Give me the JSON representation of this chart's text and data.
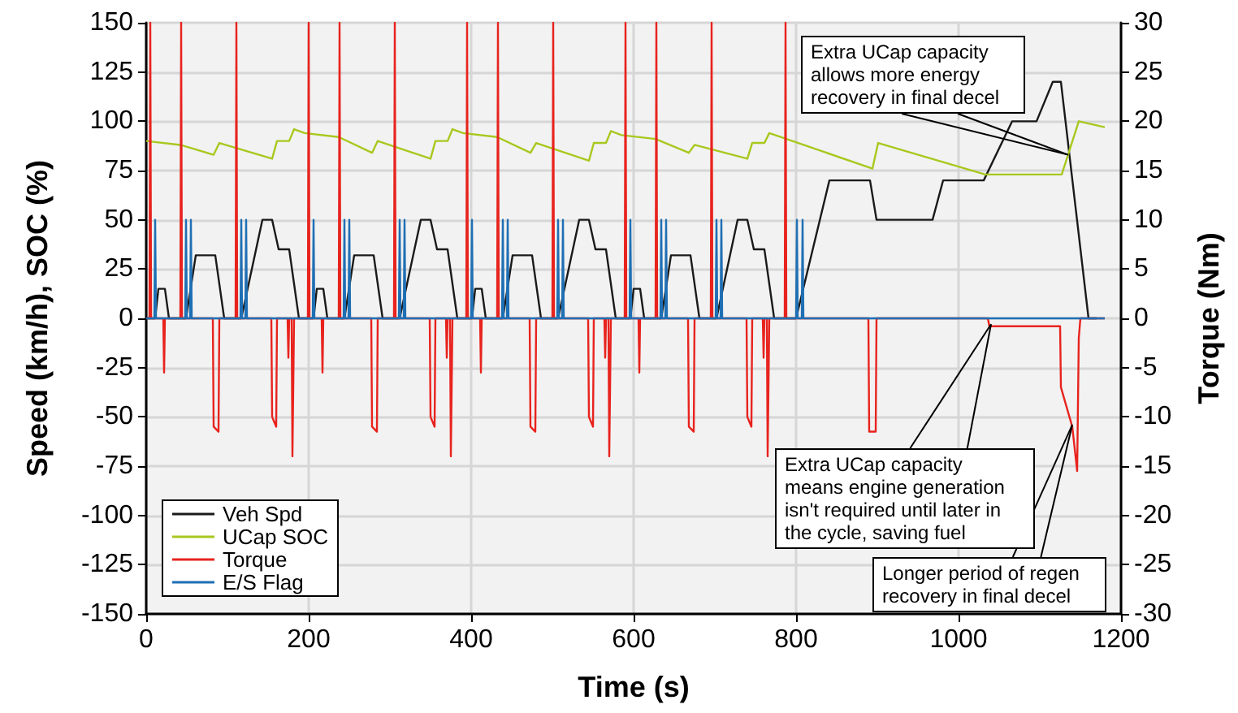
{
  "chart_data": {
    "type": "line",
    "xlabel": "Time (s)",
    "ylabel": "Speed (km/h), SOC (%)",
    "y2label": "Torque (Nm)",
    "xlim": [
      0,
      1200
    ],
    "xticks": [
      0,
      200,
      400,
      600,
      800,
      1000,
      1200
    ],
    "ylim": [
      -150,
      150
    ],
    "yticks": [
      -150,
      -125,
      -100,
      -75,
      -50,
      -25,
      0,
      25,
      50,
      75,
      100,
      125,
      150
    ],
    "y2lim": [
      -30,
      30
    ],
    "y2ticks": [
      -30,
      -25,
      -20,
      -15,
      -10,
      -5,
      0,
      5,
      10,
      15,
      20,
      25,
      30
    ],
    "grid": true,
    "legend": "bottom left",
    "annotations": [
      {
        "text": "Extra UCap capacity allows more energy recovery in final decel",
        "x": 1135,
        "y": 83
      },
      {
        "text": "Extra UCap capacity means engine generation isn't required until later in the cycle, saving fuel",
        "x": 1040,
        "y": -3
      },
      {
        "text": "Longer period of regen recovery in final decel",
        "x": 1140,
        "y": -54
      }
    ],
    "series": [
      {
        "name": "Veh Spd",
        "color": "#1a1a1a",
        "x": [
          0,
          11,
          15,
          23,
          28,
          49,
          61,
          85,
          96,
          117,
          143,
          155,
          163,
          176,
          188,
          195,
          206,
          210,
          218,
          223,
          244,
          256,
          280,
          291,
          312,
          338,
          350,
          358,
          371,
          383,
          390,
          401,
          405,
          413,
          418,
          439,
          451,
          475,
          486,
          507,
          533,
          545,
          553,
          566,
          578,
          585,
          596,
          600,
          608,
          613,
          634,
          646,
          670,
          681,
          702,
          728,
          740,
          748,
          761,
          773,
          780,
          800,
          841,
          891,
          899,
          968,
          981,
          1031,
          1066,
          1096,
          1116,
          1126,
          1160,
          1170
        ],
        "values": [
          0,
          0,
          15,
          15,
          0,
          0,
          32,
          32,
          0,
          0,
          50,
          50,
          35,
          35,
          0,
          0,
          0,
          15,
          15,
          0,
          0,
          32,
          32,
          0,
          0,
          50,
          50,
          35,
          35,
          0,
          0,
          0,
          15,
          15,
          0,
          0,
          32,
          32,
          0,
          0,
          50,
          50,
          35,
          35,
          0,
          0,
          0,
          15,
          15,
          0,
          0,
          32,
          32,
          0,
          0,
          50,
          50,
          35,
          35,
          0,
          0,
          0,
          70,
          70,
          50,
          50,
          70,
          70,
          100,
          100,
          120,
          120,
          0,
          0
        ]
      },
      {
        "name": "UCap SOC",
        "color": "#a8c81e",
        "x": [
          0,
          42,
          83,
          90,
          155,
          161,
          176,
          182,
          195,
          237,
          278,
          285,
          350,
          356,
          371,
          377,
          390,
          432,
          473,
          480,
          545,
          551,
          566,
          572,
          585,
          627,
          668,
          675,
          740,
          746,
          761,
          767,
          894,
          901,
          1033,
          1127,
          1148,
          1180
        ],
        "values": [
          90,
          88,
          83,
          89,
          81,
          90,
          90,
          96,
          94,
          92,
          84,
          90,
          81,
          90,
          90,
          96,
          94,
          92,
          84,
          89,
          80,
          89,
          89,
          95,
          93,
          91,
          84,
          88,
          81,
          89,
          89,
          94,
          76,
          89,
          73,
          73,
          100,
          97
        ]
      },
      {
        "name": "Torque",
        "color": "#e8231e",
        "axis": "y2",
        "x": [
          0,
          4,
          5,
          6,
          21,
          22,
          23,
          42,
          43,
          44,
          82,
          83,
          89,
          90,
          110,
          111,
          112,
          154,
          155,
          160,
          161,
          174,
          175,
          176,
          179,
          180,
          182,
          195,
          199,
          200,
          201,
          216,
          217,
          218,
          237,
          238,
          239,
          277,
          278,
          284,
          285,
          305,
          306,
          307,
          349,
          350,
          355,
          356,
          369,
          370,
          371,
          374,
          375,
          377,
          390,
          394,
          395,
          396,
          411,
          412,
          413,
          432,
          433,
          434,
          472,
          473,
          479,
          480,
          500,
          501,
          502,
          544,
          545,
          550,
          551,
          564,
          565,
          566,
          569,
          570,
          572,
          585,
          589,
          590,
          591,
          606,
          607,
          608,
          627,
          628,
          629,
          667,
          668,
          674,
          675,
          695,
          696,
          697,
          739,
          740,
          745,
          746,
          759,
          760,
          761,
          764,
          765,
          767,
          780,
          786,
          787,
          788,
          889,
          890,
          898,
          899,
          1036,
          1038,
          1125,
          1126,
          1140,
          1146,
          1148,
          1150,
          1180
        ],
        "values": [
          0,
          0,
          30,
          0,
          0,
          -5.5,
          0,
          0,
          30,
          0,
          0,
          -11,
          -11.5,
          0,
          0,
          30,
          0,
          0,
          -10,
          -11,
          0,
          0,
          -4,
          0,
          0,
          -14,
          0,
          0,
          0,
          30,
          0,
          0,
          -5.5,
          0,
          0,
          30,
          0,
          0,
          -11,
          -11.5,
          0,
          0,
          30,
          0,
          0,
          -10,
          -11,
          0,
          0,
          -4,
          0,
          0,
          -14,
          0,
          0,
          0,
          30,
          0,
          0,
          -5.5,
          0,
          0,
          30,
          0,
          0,
          -11,
          -11.5,
          0,
          0,
          30,
          0,
          0,
          -10,
          -11,
          0,
          0,
          -4,
          0,
          0,
          -14,
          0,
          0,
          0,
          30,
          0,
          0,
          -5.5,
          0,
          0,
          30,
          0,
          0,
          -11,
          -11.5,
          0,
          0,
          30,
          0,
          0,
          -10,
          -11,
          0,
          0,
          -4,
          0,
          0,
          -14,
          0,
          0,
          0,
          30,
          0,
          0,
          -11.5,
          -11.5,
          0,
          0,
          -0.8,
          -0.8,
          -7,
          -11,
          -15.5,
          -2,
          0,
          0
        ]
      },
      {
        "name": "E/S Flag",
        "color": "#1f6fb4",
        "x": [
          0,
          10,
          11,
          12,
          48,
          49,
          50,
          54,
          55,
          56,
          116,
          117,
          118,
          122,
          123,
          124,
          195,
          205,
          206,
          207,
          243,
          244,
          245,
          249,
          250,
          251,
          311,
          312,
          313,
          317,
          318,
          319,
          390,
          400,
          401,
          402,
          438,
          439,
          440,
          444,
          445,
          446,
          506,
          507,
          508,
          512,
          513,
          514,
          585,
          595,
          596,
          597,
          633,
          634,
          635,
          639,
          640,
          641,
          701,
          702,
          703,
          707,
          708,
          709,
          800,
          801,
          802,
          807,
          808,
          809,
          1180
        ],
        "values": [
          0,
          0,
          50,
          0,
          0,
          50,
          0,
          0,
          50,
          0,
          0,
          50,
          0,
          0,
          50,
          0,
          0,
          0,
          50,
          0,
          0,
          50,
          0,
          0,
          50,
          0,
          0,
          50,
          0,
          0,
          50,
          0,
          0,
          0,
          50,
          0,
          0,
          50,
          0,
          0,
          50,
          0,
          0,
          50,
          0,
          0,
          50,
          0,
          0,
          0,
          50,
          0,
          0,
          50,
          0,
          0,
          50,
          0,
          0,
          50,
          0,
          0,
          50,
          0,
          0,
          50,
          0,
          0,
          50,
          0,
          0
        ]
      }
    ]
  }
}
